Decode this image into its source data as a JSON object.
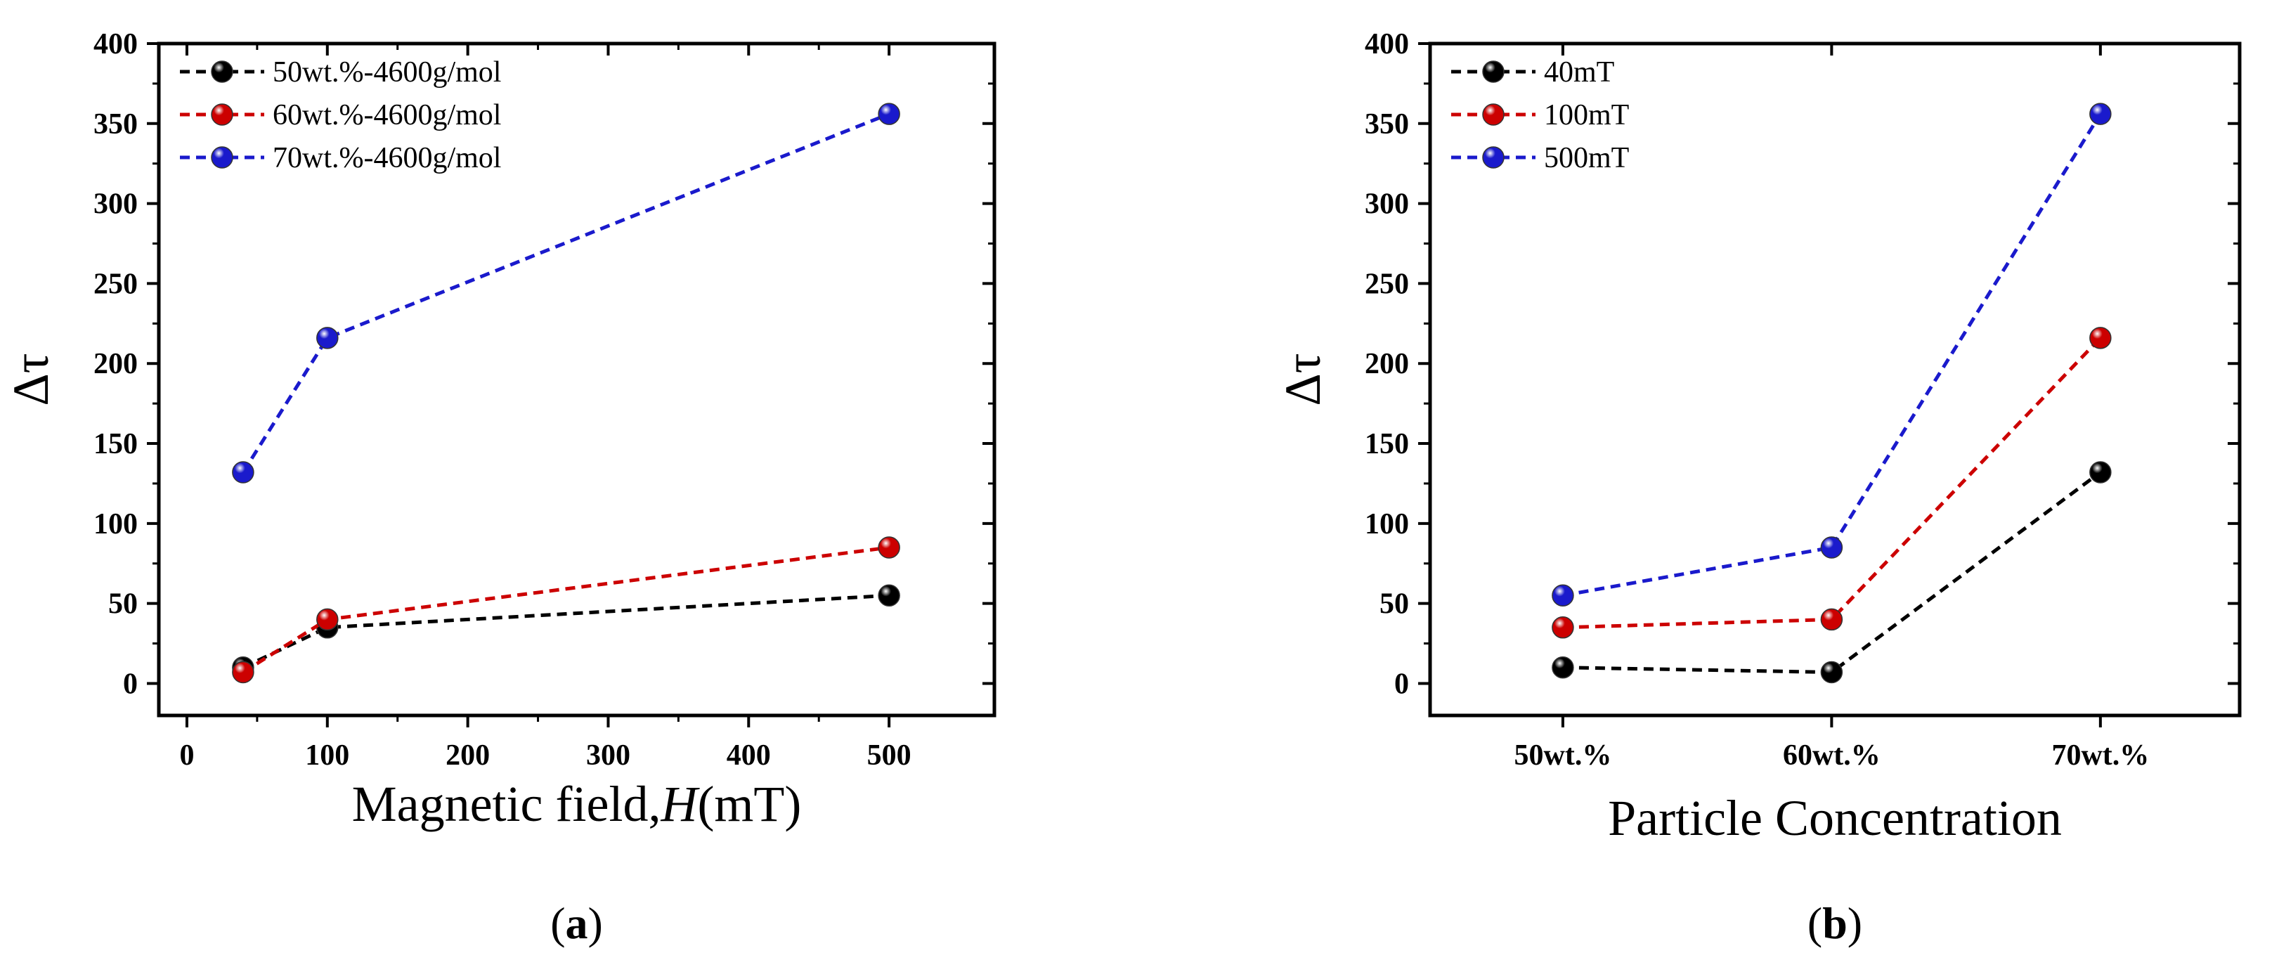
{
  "charts": [
    {
      "id": "a",
      "chart_data": {
        "type": "line",
        "x": [
          40,
          100,
          500
        ],
        "series": [
          {
            "name": "50wt.%-4600g/mol",
            "color": "#000000",
            "values": [
              10,
              35,
              55
            ]
          },
          {
            "name": "60wt.%-4600g/mol",
            "color": "#cc0000",
            "values": [
              7,
              40,
              85
            ]
          },
          {
            "name": "70wt.%-4600g/mol",
            "color": "#1a1acc",
            "values": [
              132,
              216,
              356
            ]
          }
        ],
        "xlim": [
          -20,
          575
        ],
        "ylim": [
          -20,
          400
        ],
        "xticks": [
          0,
          100,
          200,
          300,
          400,
          500
        ],
        "xtick_labels": [
          "0",
          "100",
          "200",
          "300",
          "400",
          "500"
        ],
        "yticks": [
          0,
          50,
          100,
          150,
          200,
          250,
          300,
          350,
          400
        ],
        "ytick_labels": [
          "0",
          "50",
          "100",
          "150",
          "200",
          "250",
          "300",
          "350",
          "400"
        ],
        "xlabel_prefix": "Magnetic field,",
        "xlabel_italic": "H",
        "xlabel_suffix": "(mT)",
        "ylabel": "Δτ",
        "legend_position": "top-left",
        "grid": false
      },
      "caption": {
        "open": "(",
        "letter": "a",
        "close": ")"
      }
    },
    {
      "id": "b",
      "chart_data": {
        "type": "line",
        "categories": [
          "50wt.%",
          "60wt.%",
          "70wt.%"
        ],
        "series": [
          {
            "name": "40mT",
            "color": "#000000",
            "values": [
              10,
              7,
              132
            ]
          },
          {
            "name": "100mT",
            "color": "#cc0000",
            "values": [
              35,
              40,
              216
            ]
          },
          {
            "name": "500mT",
            "color": "#1a1acc",
            "values": [
              55,
              85,
              356
            ]
          }
        ],
        "ylim": [
          -20,
          400
        ],
        "yticks": [
          0,
          50,
          100,
          150,
          200,
          250,
          300,
          350,
          400
        ],
        "ytick_labels": [
          "0",
          "50",
          "100",
          "150",
          "200",
          "250",
          "300",
          "350",
          "400"
        ],
        "xlabel": "Particle Concentration",
        "ylabel": "Δτ",
        "legend_position": "top-left",
        "grid": false
      },
      "caption": {
        "open": "(",
        "letter": "b",
        "close": ")"
      }
    }
  ]
}
